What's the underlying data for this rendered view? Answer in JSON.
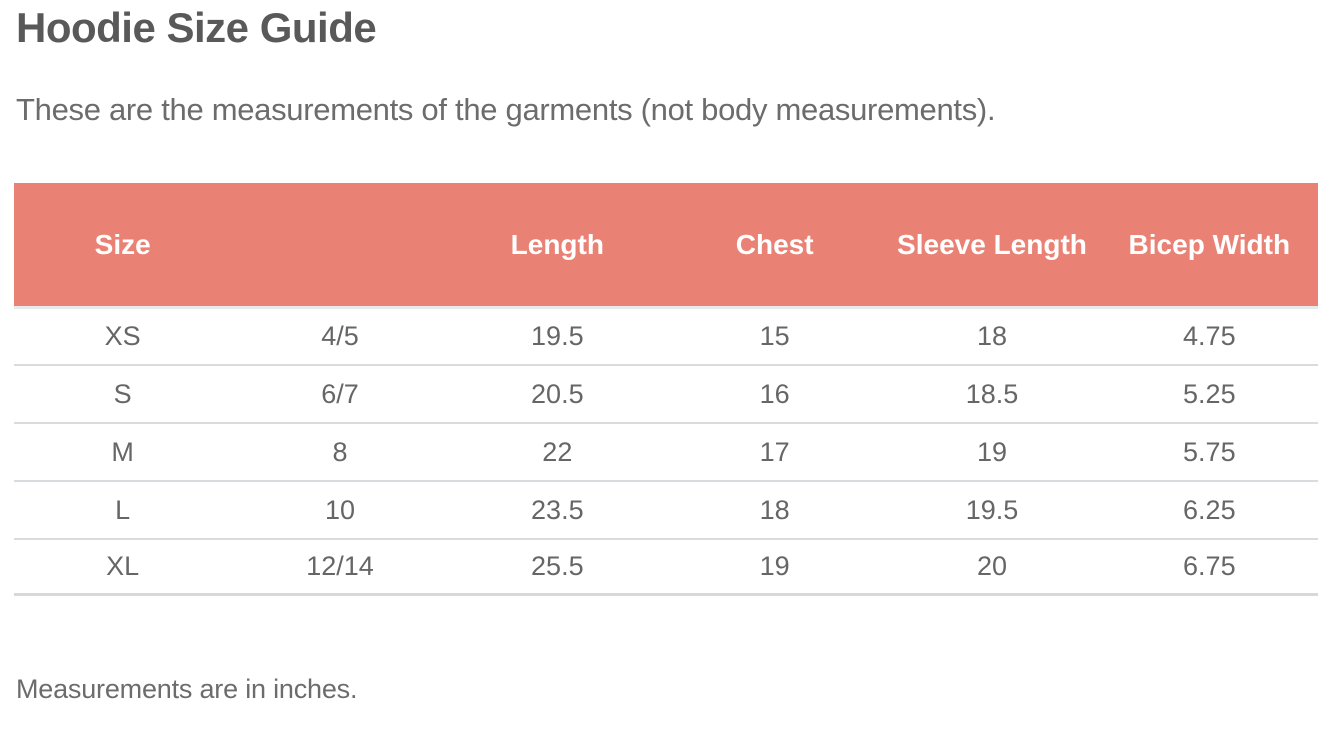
{
  "page": {
    "title": "Hoodie Size Guide",
    "subtitle": "These are the measurements of the garments (not body measurements).",
    "footnote": "Measurements are in inches."
  },
  "table": {
    "columns": [
      "Size",
      "",
      "Length",
      "Chest",
      "Sleeve Length",
      "Bicep Width"
    ],
    "rows": [
      [
        "XS",
        "4/5",
        "19.5",
        "15",
        "18",
        "4.75"
      ],
      [
        "S",
        "6/7",
        "20.5",
        "16",
        "18.5",
        "5.25"
      ],
      [
        "M",
        "8",
        "22",
        "17",
        "19",
        "5.75"
      ],
      [
        "L",
        "10",
        "23.5",
        "18",
        "19.5",
        "6.25"
      ],
      [
        "XL",
        "12/14",
        "25.5",
        "19",
        "20",
        "6.75"
      ]
    ]
  },
  "colors": {
    "header_bg": "#E98275",
    "header_text": "#FFFFFF",
    "title_text": "#595959",
    "body_text": "#666666",
    "muted_text": "#6C6C6C",
    "divider": "#D8DCDF"
  }
}
